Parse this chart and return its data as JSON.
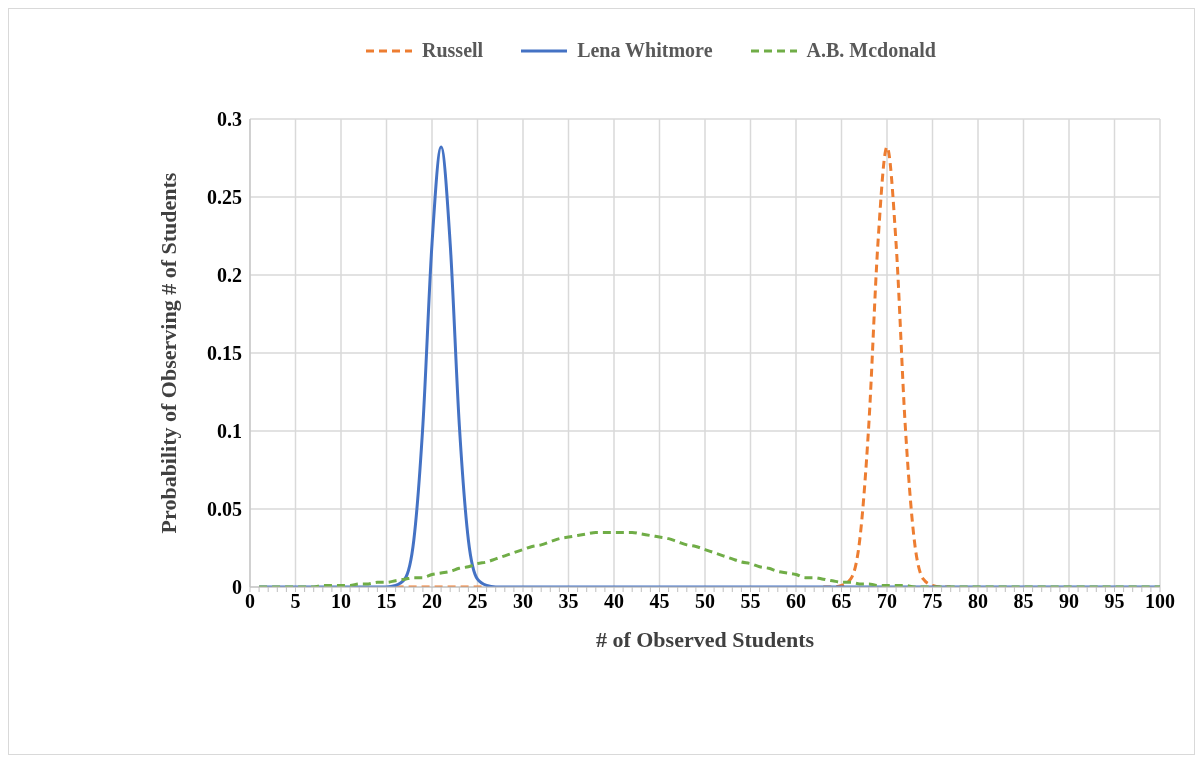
{
  "chart_data": {
    "type": "line",
    "xlabel": "# of Observed Students",
    "ylabel": "Probability of Observing # of Students",
    "x": [
      1,
      2,
      3,
      4,
      5,
      6,
      7,
      8,
      9,
      10,
      11,
      12,
      13,
      14,
      15,
      16,
      17,
      18,
      19,
      20,
      21,
      22,
      23,
      24,
      25,
      26,
      27,
      28,
      29,
      30,
      31,
      32,
      33,
      34,
      35,
      36,
      37,
      38,
      39,
      40,
      41,
      42,
      43,
      44,
      45,
      46,
      47,
      48,
      49,
      50,
      51,
      52,
      53,
      54,
      55,
      56,
      57,
      58,
      59,
      60,
      61,
      62,
      63,
      64,
      65,
      66,
      67,
      68,
      69,
      70,
      71,
      72,
      73,
      74,
      75,
      76,
      77,
      78,
      79,
      80,
      81,
      82,
      83,
      84,
      85,
      86,
      87,
      88,
      89,
      90,
      91,
      92,
      93,
      94,
      95,
      96,
      97,
      98,
      99,
      100
    ],
    "series": [
      {
        "name": "Russell",
        "color": "#ed7d31",
        "line_style": "dashed",
        "values": [
          null,
          null,
          null,
          null,
          null,
          null,
          null,
          null,
          null,
          null,
          null,
          null,
          null,
          null,
          null,
          0,
          0,
          0,
          0,
          0,
          0,
          0,
          0,
          0,
          0,
          0,
          null,
          null,
          null,
          null,
          null,
          null,
          null,
          null,
          null,
          null,
          null,
          null,
          null,
          null,
          null,
          null,
          null,
          null,
          null,
          null,
          null,
          null,
          null,
          null,
          null,
          null,
          null,
          null,
          null,
          null,
          null,
          null,
          null,
          null,
          null,
          null,
          0,
          0,
          0.001,
          0.005,
          0.03,
          0.104,
          0.22,
          0.282,
          0.22,
          0.104,
          0.03,
          0.005,
          0.001,
          0,
          0,
          null,
          null,
          null,
          null,
          null,
          null,
          null,
          null,
          null,
          null,
          null,
          null,
          null,
          null,
          null,
          null,
          null,
          null,
          null,
          null,
          null,
          null,
          null
        ]
      },
      {
        "name": "Lena Whitmore",
        "color": "#4472c4",
        "line_style": "solid",
        "values": [
          0,
          0,
          0,
          0,
          0,
          0,
          0,
          0,
          0,
          0,
          0,
          0,
          0,
          0,
          0,
          0.001,
          0.005,
          0.03,
          0.104,
          0.22,
          0.282,
          0.22,
          0.104,
          0.03,
          0.005,
          0.001,
          0,
          0,
          0,
          0,
          0,
          0,
          0,
          0,
          0,
          0,
          0,
          0,
          0,
          0,
          0,
          0,
          0,
          0,
          0,
          0,
          0,
          0,
          0,
          0,
          0,
          0,
          0,
          0,
          0,
          0,
          0,
          0,
          0,
          0,
          0,
          0,
          0,
          0,
          0,
          0,
          0,
          0,
          0,
          0,
          0,
          0,
          0,
          0,
          0,
          0,
          0,
          0,
          0,
          0,
          0,
          0,
          0,
          0,
          0,
          0,
          0,
          0,
          0,
          0,
          0,
          0,
          0,
          0,
          0,
          0,
          0,
          0,
          0,
          0
        ]
      },
      {
        "name": "A.B. Mcdonald",
        "color": "#70ad47",
        "line_style": "dashed",
        "values": [
          0,
          0,
          0,
          0,
          0,
          0,
          0,
          0.001,
          0.001,
          0.001,
          0.001,
          0.002,
          0.002,
          0.003,
          0.003,
          0.004,
          0.005,
          0.006,
          0.006,
          0.008,
          0.009,
          0.01,
          0.012,
          0.013,
          0.015,
          0.016,
          0.018,
          0.02,
          0.022,
          0.024,
          0.026,
          0.027,
          0.029,
          0.031,
          0.032,
          0.033,
          0.034,
          0.035,
          0.035,
          0.035,
          0.035,
          0.035,
          0.034,
          0.033,
          0.032,
          0.031,
          0.029,
          0.027,
          0.026,
          0.024,
          0.022,
          0.02,
          0.018,
          0.016,
          0.015,
          0.013,
          0.012,
          0.01,
          0.009,
          0.008,
          0.006,
          0.006,
          0.005,
          0.004,
          0.003,
          0.003,
          0.002,
          0.002,
          0.001,
          0.001,
          0.001,
          0.001,
          0,
          0,
          0,
          0,
          0,
          0,
          0,
          0,
          0,
          0,
          0,
          0,
          0,
          0,
          0,
          0,
          0,
          0,
          0,
          0,
          0,
          0,
          0,
          0,
          0,
          0,
          0,
          0
        ]
      }
    ],
    "xlim": [
      0,
      100
    ],
    "xticks": [
      0,
      {
        "value": 1,
        "label": null
      },
      {
        "value": 2,
        "label": null
      },
      {
        "value": 3,
        "label": null
      },
      {
        "value": 4,
        "label": null
      },
      5,
      {
        "value": 6,
        "label": null
      },
      {
        "value": 7,
        "label": null
      },
      {
        "value": 8,
        "label": null
      },
      {
        "value": 9,
        "label": null
      },
      10,
      {
        "value": 11,
        "label": null
      },
      {
        "value": 12,
        "label": null
      },
      {
        "value": 13,
        "label": null
      },
      {
        "value": 14,
        "label": null
      },
      15,
      {
        "value": 16,
        "label": null
      },
      {
        "value": 17,
        "label": null
      },
      {
        "value": 18,
        "label": null
      },
      {
        "value": 19,
        "label": null
      },
      20,
      {
        "value": 21,
        "label": null
      },
      {
        "value": 22,
        "label": null
      },
      {
        "value": 23,
        "label": null
      },
      {
        "value": 24,
        "label": null
      },
      25,
      {
        "value": 26,
        "label": null
      },
      {
        "value": 27,
        "label": null
      },
      {
        "value": 28,
        "label": null
      },
      {
        "value": 29,
        "label": null
      },
      30,
      {
        "value": 31,
        "label": null
      },
      {
        "value": 32,
        "label": null
      },
      {
        "value": 33,
        "label": null
      },
      {
        "value": 34,
        "label": null
      },
      35,
      {
        "value": 36,
        "label": null
      },
      {
        "value": 37,
        "label": null
      },
      {
        "value": 38,
        "label": null
      },
      {
        "value": 39,
        "label": null
      },
      40,
      {
        "value": 41,
        "label": null
      },
      {
        "value": 42,
        "label": null
      },
      {
        "value": 43,
        "label": null
      },
      {
        "value": 44,
        "label": null
      },
      45,
      {
        "value": 46,
        "label": null
      },
      {
        "value": 47,
        "label": null
      },
      {
        "value": 48,
        "label": null
      },
      {
        "value": 49,
        "label": null
      },
      50,
      {
        "value": 51,
        "label": null
      },
      {
        "value": 52,
        "label": null
      },
      {
        "value": 53,
        "label": null
      },
      {
        "value": 54,
        "label": null
      },
      55,
      {
        "value": 56,
        "label": null
      },
      {
        "value": 57,
        "label": null
      },
      {
        "value": 58,
        "label": null
      },
      {
        "value": 59,
        "label": null
      },
      60,
      {
        "value": 61,
        "label": null
      },
      {
        "value": 62,
        "label": null
      },
      {
        "value": 63,
        "label": null
      },
      {
        "value": 64,
        "label": null
      },
      65,
      {
        "value": 66,
        "label": null
      },
      {
        "value": 67,
        "label": null
      },
      {
        "value": 68,
        "label": null
      },
      {
        "value": 69,
        "label": null
      },
      70,
      {
        "value": 71,
        "label": null
      },
      {
        "value": 72,
        "label": null
      },
      {
        "value": 73,
        "label": null
      },
      {
        "value": 74,
        "label": null
      },
      75,
      {
        "value": 76,
        "label": null
      },
      {
        "value": 77,
        "label": null
      },
      {
        "value": 78,
        "label": null
      },
      {
        "value": 79,
        "label": null
      },
      80,
      {
        "value": 81,
        "label": null
      },
      {
        "value": 82,
        "label": null
      },
      {
        "value": 83,
        "label": null
      },
      {
        "value": 84,
        "label": null
      },
      85,
      {
        "value": 86,
        "label": null
      },
      {
        "value": 87,
        "label": null
      },
      {
        "value": 88,
        "label": null
      },
      {
        "value": 89,
        "label": null
      },
      90,
      {
        "value": 91,
        "label": null
      },
      {
        "value": 92,
        "label": null
      },
      {
        "value": 93,
        "label": null
      },
      {
        "value": 94,
        "label": null
      },
      95,
      {
        "value": 96,
        "label": null
      },
      {
        "value": 97,
        "label": null
      },
      {
        "value": 98,
        "label": null
      },
      {
        "value": 99,
        "label": null
      },
      100
    ],
    "ylim": [
      0,
      0.3
    ],
    "yticks": [
      0,
      0.05,
      0.1,
      0.15,
      0.2,
      0.25,
      0.3
    ],
    "grid": true,
    "legend": "top",
    "marker": "none"
  }
}
